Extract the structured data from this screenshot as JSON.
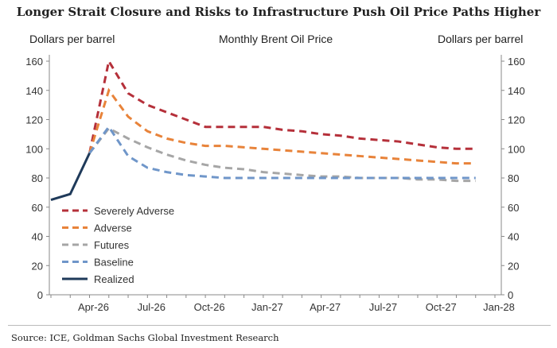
{
  "title": "Longer Strait Closure and Risks to Infrastructure Push Oil Price Paths Higher",
  "source": "Source: ICE, Goldman Sachs Global Investment Research",
  "chart_data": {
    "type": "line",
    "title": "Monthly Brent Oil Price",
    "ylabel_left": "Dollars per barrel",
    "ylabel_right": "Dollars per barrel",
    "ylim": [
      0,
      160
    ],
    "yticks": [
      0,
      20,
      40,
      60,
      80,
      100,
      120,
      140,
      160
    ],
    "x": [
      "Feb-26",
      "Mar-26",
      "Apr-26",
      "May-26",
      "Jun-26",
      "Jul-26",
      "Aug-26",
      "Sep-26",
      "Oct-26",
      "Nov-26",
      "Dec-26",
      "Jan-27",
      "Feb-27",
      "Mar-27",
      "Apr-27",
      "May-27",
      "Jun-27",
      "Jul-27",
      "Aug-27",
      "Sep-27",
      "Oct-27",
      "Nov-27",
      "Dec-27",
      "Jan-28"
    ],
    "xticks": [
      "Apr-26",
      "Jul-26",
      "Oct-26",
      "Jan-27",
      "Apr-27",
      "Jul-27",
      "Oct-27",
      "Jan-28"
    ],
    "legend_position": "bottom-left",
    "grid": false,
    "series": [
      {
        "name": "Severely Adverse",
        "color": "#b5303a",
        "dashed": true,
        "values": [
          null,
          null,
          97,
          160,
          138,
          130,
          125,
          120,
          115,
          115,
          115,
          115,
          113,
          112,
          110,
          109,
          107,
          106,
          105,
          103,
          101,
          100,
          100,
          null
        ]
      },
      {
        "name": "Adverse",
        "color": "#e8833a",
        "dashed": true,
        "values": [
          null,
          null,
          97,
          140,
          122,
          112,
          107,
          104,
          102,
          102,
          101,
          100,
          99,
          98,
          97,
          96,
          95,
          94,
          93,
          92,
          91,
          90,
          90,
          null
        ]
      },
      {
        "name": "Futures",
        "color": "#a6a6a6",
        "dashed": true,
        "values": [
          null,
          null,
          97,
          114,
          107,
          101,
          96,
          92,
          89,
          87,
          86,
          84,
          83,
          82,
          81,
          81,
          80,
          80,
          80,
          79,
          79,
          78,
          78,
          null
        ]
      },
      {
        "name": "Baseline",
        "color": "#6f96c9",
        "dashed": true,
        "values": [
          null,
          null,
          97,
          115,
          95,
          87,
          84,
          82,
          81,
          80,
          80,
          80,
          80,
          80,
          80,
          80,
          80,
          80,
          80,
          80,
          80,
          80,
          80,
          null
        ]
      },
      {
        "name": "Realized",
        "color": "#1f3a5a",
        "dashed": false,
        "values": [
          65,
          69,
          97,
          null,
          null,
          null,
          null,
          null,
          null,
          null,
          null,
          null,
          null,
          null,
          null,
          null,
          null,
          null,
          null,
          null,
          null,
          null,
          null,
          null
        ]
      }
    ]
  }
}
